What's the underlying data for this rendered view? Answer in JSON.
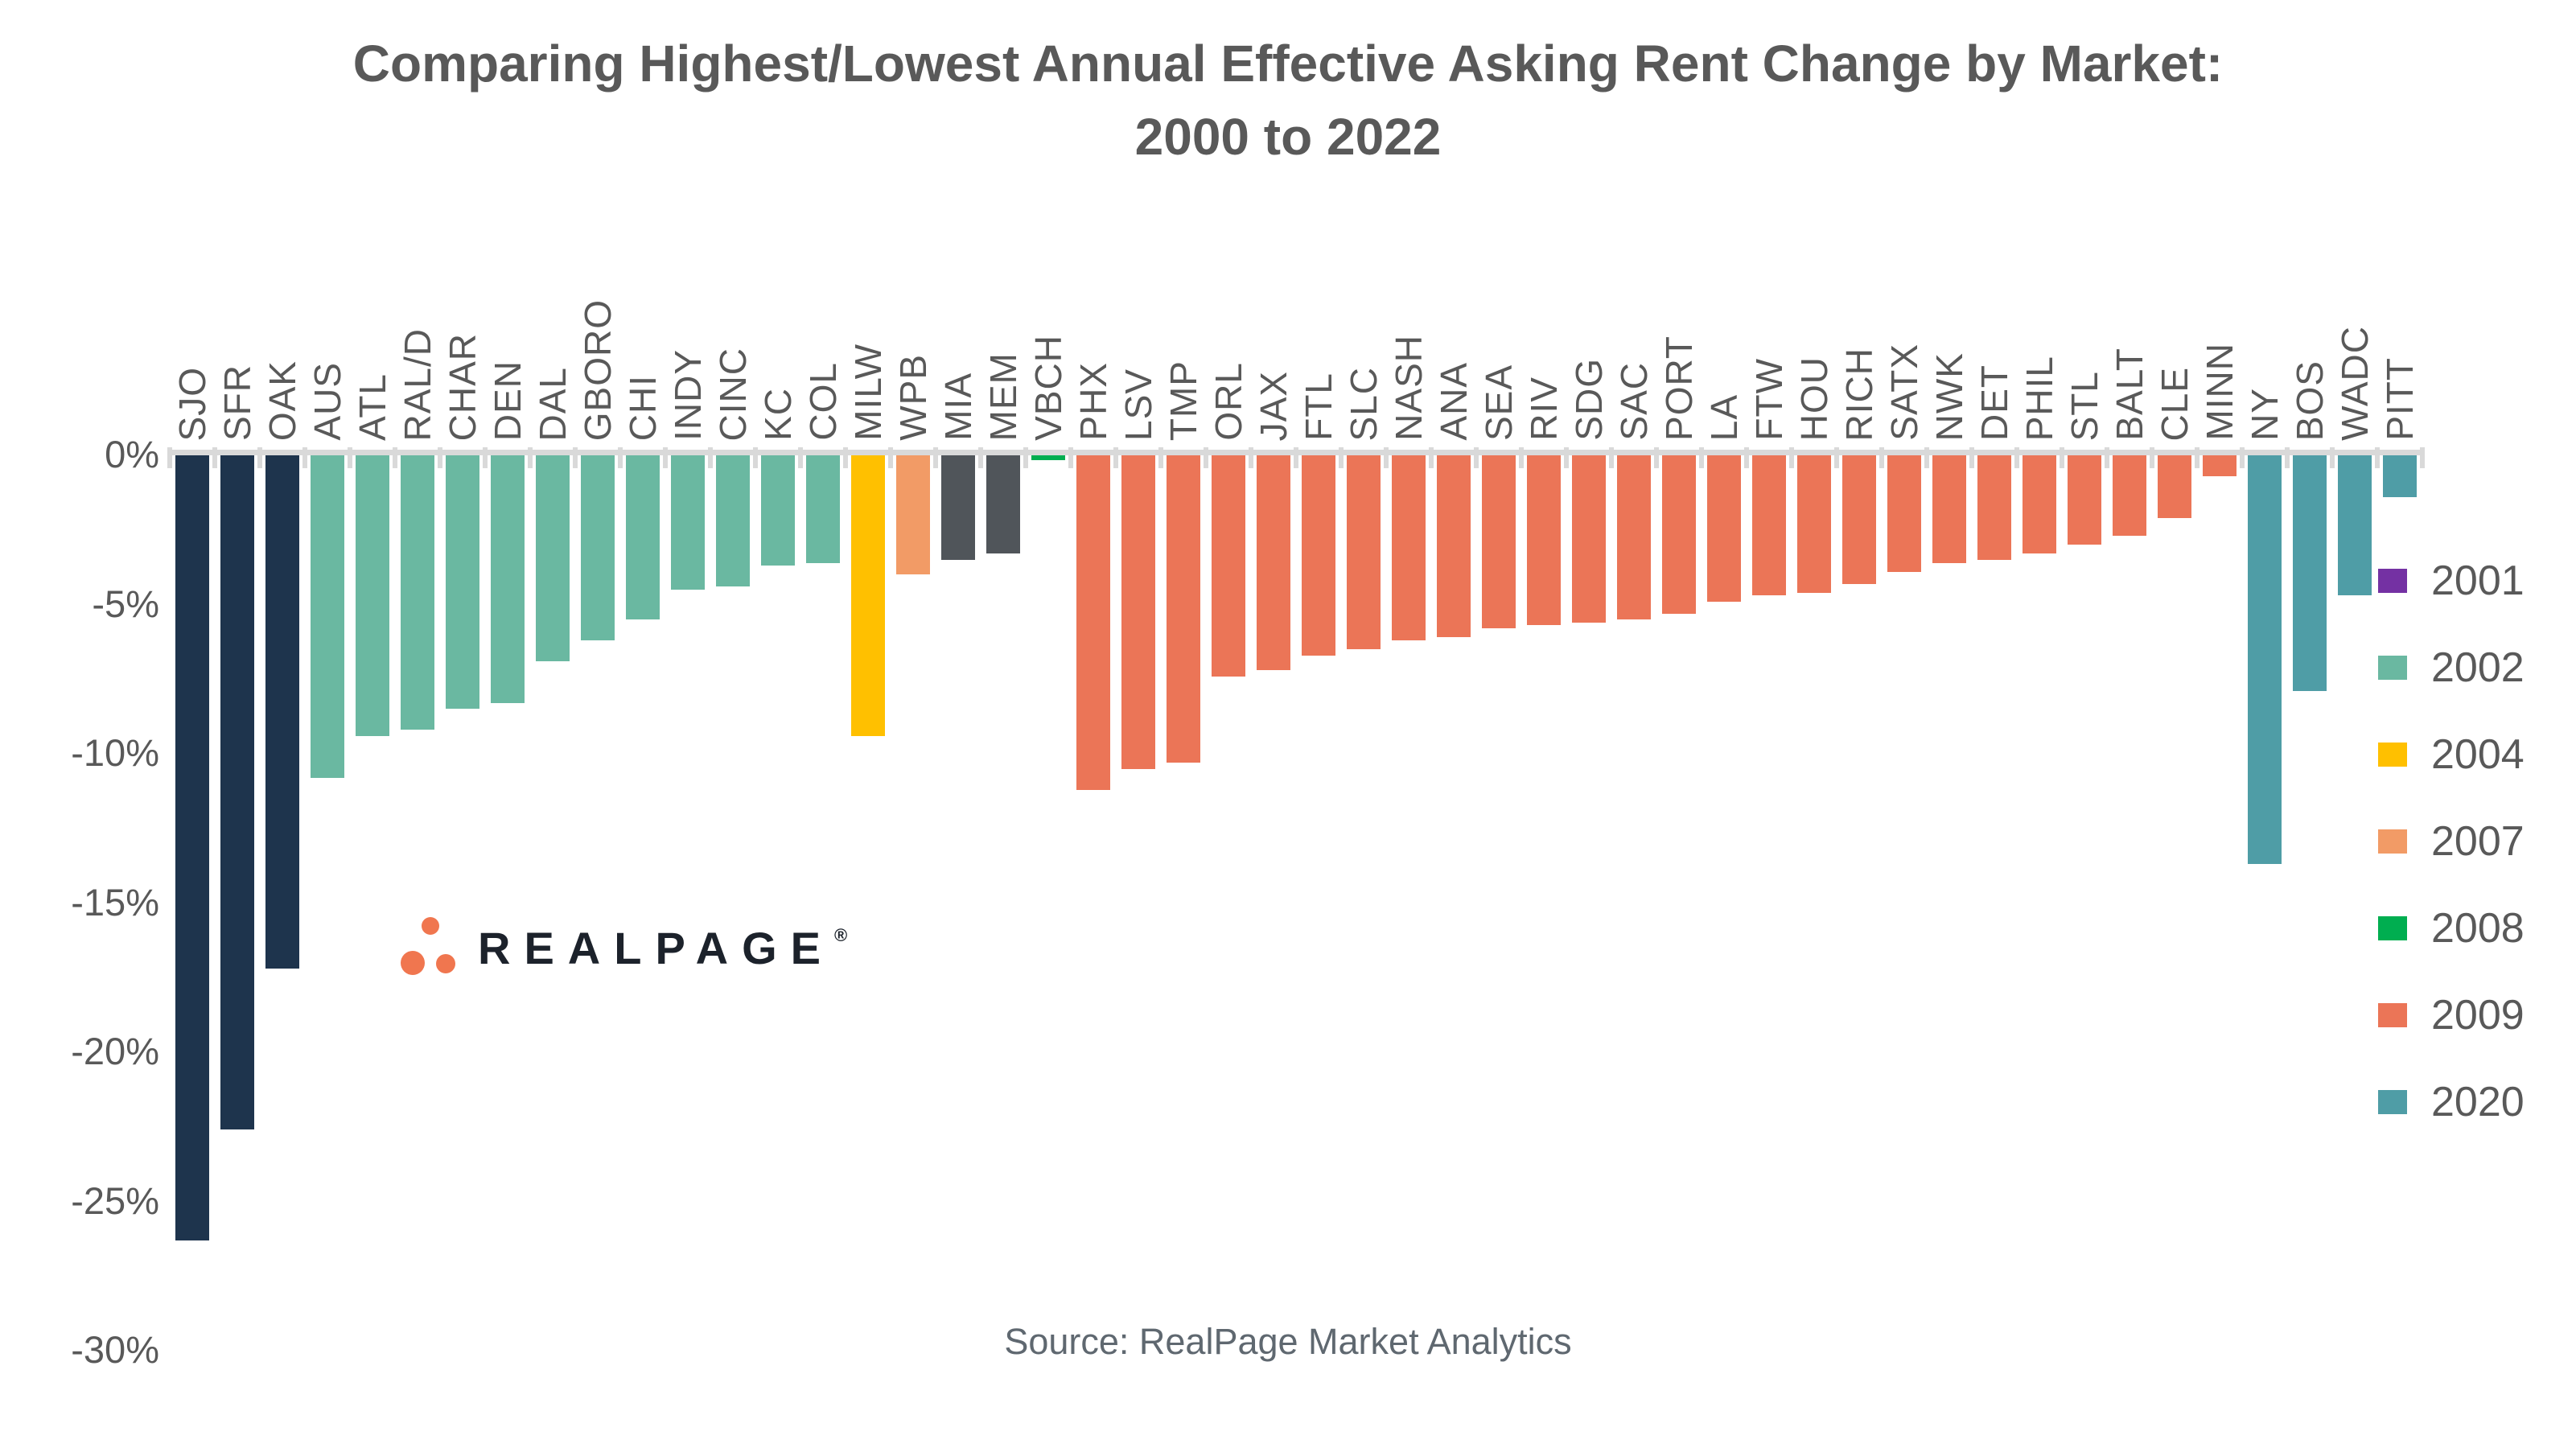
{
  "title": "Comparing Highest/Lowest Annual Effective Asking Rent Change by Market: 2000 to 2022",
  "source_note": "Source: RealPage Market Analytics",
  "logo": {
    "text": "REALPAGE",
    "registered_mark": "®",
    "dot_color": "#F0764F",
    "text_color": "#1C222B"
  },
  "colors": {
    "axis": "#D9D9D9",
    "label_gray": "#595959",
    "navy": "#1E344D",
    "teal_2002": "#6AB8A1",
    "gold_2004": "#FFC000",
    "orange_2007": "#F29B66",
    "charcoal": "#50555A",
    "green_2008": "#00AE50",
    "coral_2009": "#EB7557",
    "steel_2020": "#4F9DA6",
    "purple_2001": "#7431A3"
  },
  "chart_data": {
    "type": "bar",
    "title": "Comparing Highest/Lowest Annual Effective Asking Rent Change by Market: 2000 to 2022",
    "xlabel": "",
    "ylabel": "",
    "ylim": [
      -30,
      0
    ],
    "grid": false,
    "legend_position": "right",
    "yticks": [
      {
        "label": "0%",
        "value": 0
      },
      {
        "label": "-5%",
        "value": -5
      },
      {
        "label": "-10%",
        "value": -10
      },
      {
        "label": "-15%",
        "value": -15
      },
      {
        "label": "-20%",
        "value": -20
      },
      {
        "label": "-25%",
        "value": -25
      },
      {
        "label": "-30%",
        "value": -30
      }
    ],
    "legend": [
      {
        "year": "2001",
        "color": "#7431A3"
      },
      {
        "year": "2002",
        "color": "#6AB8A1"
      },
      {
        "year": "2004",
        "color": "#FFC000"
      },
      {
        "year": "2007",
        "color": "#F29B66"
      },
      {
        "year": "2008",
        "color": "#00AE50"
      },
      {
        "year": "2009",
        "color": "#EB7557"
      },
      {
        "year": "2020",
        "color": "#4F9DA6"
      }
    ],
    "bars": [
      {
        "market": "SJO",
        "value": -26.3,
        "color": "#1E344D"
      },
      {
        "market": "SFR",
        "value": -22.6,
        "color": "#1E344D"
      },
      {
        "market": "OAK",
        "value": -17.2,
        "color": "#1E344D"
      },
      {
        "market": "AUS",
        "value": -10.8,
        "color": "#6AB8A1"
      },
      {
        "market": "ATL",
        "value": -9.4,
        "color": "#6AB8A1"
      },
      {
        "market": "RAL/D",
        "value": -9.2,
        "color": "#6AB8A1"
      },
      {
        "market": "CHAR",
        "value": -8.5,
        "color": "#6AB8A1"
      },
      {
        "market": "DEN",
        "value": -8.3,
        "color": "#6AB8A1"
      },
      {
        "market": "DAL",
        "value": -6.9,
        "color": "#6AB8A1"
      },
      {
        "market": "GBORO",
        "value": -6.2,
        "color": "#6AB8A1"
      },
      {
        "market": "CHI",
        "value": -5.5,
        "color": "#6AB8A1"
      },
      {
        "market": "INDY",
        "value": -4.5,
        "color": "#6AB8A1"
      },
      {
        "market": "CINC",
        "value": -4.4,
        "color": "#6AB8A1"
      },
      {
        "market": "KC",
        "value": -3.7,
        "color": "#6AB8A1"
      },
      {
        "market": "COL",
        "value": -3.6,
        "color": "#6AB8A1"
      },
      {
        "market": "MILW",
        "value": -9.4,
        "color": "#FFC000"
      },
      {
        "market": "WPB",
        "value": -4.0,
        "color": "#F29B66"
      },
      {
        "market": "MIA",
        "value": -3.5,
        "color": "#50555A"
      },
      {
        "market": "MEM",
        "value": -3.3,
        "color": "#50555A"
      },
      {
        "market": "VBCH",
        "value": -0.15,
        "color": "#00AE50"
      },
      {
        "market": "PHX",
        "value": -11.2,
        "color": "#EB7557"
      },
      {
        "market": "LSV",
        "value": -10.5,
        "color": "#EB7557"
      },
      {
        "market": "TMP",
        "value": -10.3,
        "color": "#EB7557"
      },
      {
        "market": "ORL",
        "value": -7.4,
        "color": "#EB7557"
      },
      {
        "market": "JAX",
        "value": -7.2,
        "color": "#EB7557"
      },
      {
        "market": "FTL",
        "value": -6.7,
        "color": "#EB7557"
      },
      {
        "market": "SLC",
        "value": -6.5,
        "color": "#EB7557"
      },
      {
        "market": "NASH",
        "value": -6.2,
        "color": "#EB7557"
      },
      {
        "market": "ANA",
        "value": -6.1,
        "color": "#EB7557"
      },
      {
        "market": "SEA",
        "value": -5.8,
        "color": "#EB7557"
      },
      {
        "market": "RIV",
        "value": -5.7,
        "color": "#EB7557"
      },
      {
        "market": "SDG",
        "value": -5.6,
        "color": "#EB7557"
      },
      {
        "market": "SAC",
        "value": -5.5,
        "color": "#EB7557"
      },
      {
        "market": "PORT",
        "value": -5.3,
        "color": "#EB7557"
      },
      {
        "market": "LA",
        "value": -4.9,
        "color": "#EB7557"
      },
      {
        "market": "FTW",
        "value": -4.7,
        "color": "#EB7557"
      },
      {
        "market": "HOU",
        "value": -4.6,
        "color": "#EB7557"
      },
      {
        "market": "RICH",
        "value": -4.3,
        "color": "#EB7557"
      },
      {
        "market": "SATX",
        "value": -3.9,
        "color": "#EB7557"
      },
      {
        "market": "NWK",
        "value": -3.6,
        "color": "#EB7557"
      },
      {
        "market": "DET",
        "value": -3.5,
        "color": "#EB7557"
      },
      {
        "market": "PHIL",
        "value": -3.3,
        "color": "#EB7557"
      },
      {
        "market": "STL",
        "value": -3.0,
        "color": "#EB7557"
      },
      {
        "market": "BALT",
        "value": -2.7,
        "color": "#EB7557"
      },
      {
        "market": "CLE",
        "value": -2.1,
        "color": "#EB7557"
      },
      {
        "market": "MINN",
        "value": -0.7,
        "color": "#EB7557"
      },
      {
        "market": "NY",
        "value": -13.7,
        "color": "#4F9DA6"
      },
      {
        "market": "BOS",
        "value": -7.9,
        "color": "#4F9DA6"
      },
      {
        "market": "WADC",
        "value": -4.7,
        "color": "#4F9DA6"
      },
      {
        "market": "PITT",
        "value": -1.4,
        "color": "#4F9DA6"
      }
    ]
  }
}
